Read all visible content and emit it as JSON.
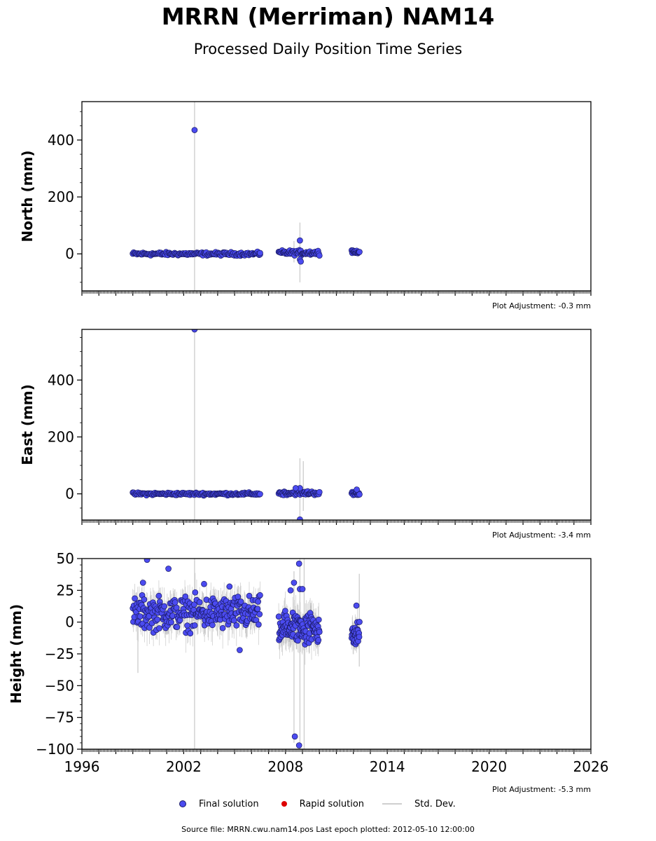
{
  "header": {
    "title": "MRRN (Merriman) NAM14",
    "subtitle": "Processed Daily Position Time Series"
  },
  "legend": {
    "final": "Final solution",
    "rapid": "Rapid solution",
    "std": "Std. Dev."
  },
  "footer": {
    "source": "Source file: MRRN.cwu.nam14.pos  Last epoch plotted: 2012-05-10 12:00:00"
  },
  "colors": {
    "final": "#4b4bf0",
    "final_edge": "#1a1a66",
    "rapid": "#dd0000",
    "std": "#cfcfcf"
  },
  "chart_data": [
    {
      "type": "scatter",
      "ylabel": "North (mm)",
      "adjustment": "Plot Adjustment: -0.3 mm",
      "xlim": [
        1996,
        2026
      ],
      "ylim": [
        -130,
        535
      ],
      "yticks": [
        0,
        200,
        400
      ],
      "series": [
        {
          "name": "Final solution",
          "segments": [
            {
              "start": 1999.0,
              "end": 2006.5,
              "base": 0,
              "spread": 5,
              "count": 150
            },
            {
              "start": 2007.6,
              "end": 2010.0,
              "base": 4,
              "spread": 7,
              "count": 60
            },
            {
              "start": 2011.9,
              "end": 2012.36,
              "base": 7,
              "spread": 4,
              "count": 15
            }
          ],
          "outliers": [
            {
              "x": 2002.64,
              "y": 435
            },
            {
              "x": 2008.85,
              "y": 47
            },
            {
              "x": 2008.85,
              "y": -20
            },
            {
              "x": 2008.9,
              "y": -27
            },
            {
              "x": 2006.5,
              "y": 3
            }
          ],
          "std_lines": [
            {
              "x": 2002.64,
              "y1": -130,
              "y2": 535
            },
            {
              "x": 2008.85,
              "y1": -100,
              "y2": 110
            },
            {
              "x": 2008.5,
              "y1": -30,
              "y2": 45
            }
          ]
        }
      ]
    },
    {
      "type": "scatter",
      "ylabel": "East (mm)",
      "adjustment": "Plot Adjustment: -3.4 mm",
      "xlim": [
        1996,
        2026
      ],
      "ylim": [
        -92,
        578
      ],
      "yticks": [
        0,
        200,
        400
      ],
      "series": [
        {
          "name": "Final solution",
          "segments": [
            {
              "start": 1999.0,
              "end": 2006.5,
              "base": 0,
              "spread": 4,
              "count": 150
            },
            {
              "start": 2007.6,
              "end": 2010.0,
              "base": 3,
              "spread": 6,
              "count": 60
            },
            {
              "start": 2011.9,
              "end": 2012.36,
              "base": 2,
              "spread": 5,
              "count": 15
            }
          ],
          "outliers": [
            {
              "x": 2002.64,
              "y": 578
            },
            {
              "x": 2008.85,
              "y": -90
            },
            {
              "x": 2008.85,
              "y": 20
            },
            {
              "x": 2008.6,
              "y": 20
            },
            {
              "x": 2012.2,
              "y": 15
            }
          ],
          "std_lines": [
            {
              "x": 2002.64,
              "y1": -92,
              "y2": 578
            },
            {
              "x": 2008.85,
              "y1": -80,
              "y2": 125
            },
            {
              "x": 2009.05,
              "y1": -60,
              "y2": 115
            }
          ]
        }
      ]
    },
    {
      "type": "scatter",
      "ylabel": "Height (mm)",
      "adjustment": "Plot Adjustment: -5.3 mm",
      "xlim": [
        1996,
        2026
      ],
      "ylim": [
        -100,
        50
      ],
      "yticks": [
        -100,
        -75,
        -50,
        -25,
        0,
        25,
        50
      ],
      "xticks": [
        1996,
        2002,
        2008,
        2014,
        2020,
        2026
      ],
      "series": [
        {
          "name": "Final solution",
          "segments": [
            {
              "start": 1999.0,
              "end": 2006.5,
              "base": 7,
              "spread": 11,
              "count": 260
            },
            {
              "start": 2007.6,
              "end": 2010.0,
              "base": -4,
              "spread": 11,
              "count": 120
            },
            {
              "start": 2011.9,
              "end": 2012.36,
              "base": -10,
              "spread": 8,
              "count": 30
            }
          ],
          "outliers": [
            {
              "x": 1999.84,
              "y": 49
            },
            {
              "x": 2001.1,
              "y": 42
            },
            {
              "x": 1999.6,
              "y": 31
            },
            {
              "x": 2003.2,
              "y": 30
            },
            {
              "x": 2004.7,
              "y": 28
            },
            {
              "x": 2005.3,
              "y": -22
            },
            {
              "x": 2008.8,
              "y": 46
            },
            {
              "x": 2008.5,
              "y": 31
            },
            {
              "x": 2008.3,
              "y": 25
            },
            {
              "x": 2008.85,
              "y": 26
            },
            {
              "x": 2009.0,
              "y": 26
            },
            {
              "x": 2008.55,
              "y": -90
            },
            {
              "x": 2008.8,
              "y": -97
            },
            {
              "x": 2012.18,
              "y": 13
            }
          ],
          "std_lines": [
            {
              "x": 2002.64,
              "y1": -100,
              "y2": 50
            },
            {
              "x": 2008.85,
              "y1": -100,
              "y2": 50
            },
            {
              "x": 2009.1,
              "y1": -100,
              "y2": 50
            },
            {
              "x": 2008.5,
              "y1": -95,
              "y2": 40
            },
            {
              "x": 1999.3,
              "y1": -40,
              "y2": 20
            },
            {
              "x": 2012.35,
              "y1": -35,
              "y2": 38
            }
          ]
        }
      ]
    }
  ]
}
